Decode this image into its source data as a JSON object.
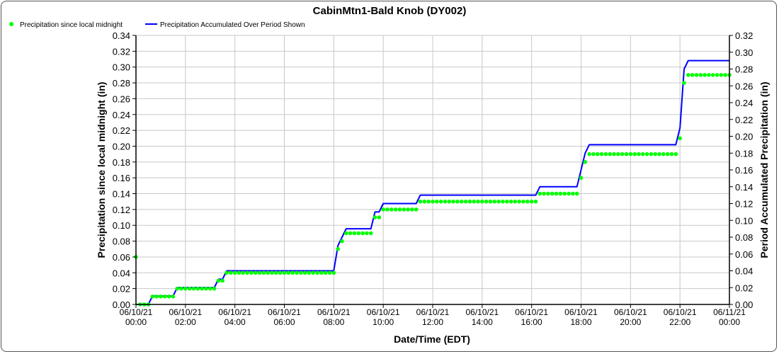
{
  "chart_data": {
    "type": "line",
    "title": "CabinMtn1-Bald Knob (DY002)",
    "xlabel": "Date/Time (EDT)",
    "ylabel_left": "Precipitation since local midnight (in)",
    "ylabel_right": "Period Accumulated Precipitation (in)",
    "ylim_left": [
      0,
      0.34
    ],
    "ylim_right": [
      0,
      0.32
    ],
    "grid": true,
    "legend": "top-left",
    "x_tick_labels": [
      [
        "06/10/21",
        "00:00"
      ],
      [
        "06/10/21",
        "02:00"
      ],
      [
        "06/10/21",
        "04:00"
      ],
      [
        "06/10/21",
        "06:00"
      ],
      [
        "06/10/21",
        "08:00"
      ],
      [
        "06/10/21",
        "10:00"
      ],
      [
        "06/10/21",
        "12:00"
      ],
      [
        "06/10/21",
        "14:00"
      ],
      [
        "06/10/21",
        "16:00"
      ],
      [
        "06/10/21",
        "18:00"
      ],
      [
        "06/10/21",
        "20:00"
      ],
      [
        "06/10/21",
        "22:00"
      ],
      [
        "06/11/21",
        "00:00"
      ]
    ],
    "y_left_ticks": [
      "0.00",
      "0.02",
      "0.04",
      "0.06",
      "0.08",
      "0.10",
      "0.12",
      "0.14",
      "0.16",
      "0.18",
      "0.20",
      "0.22",
      "0.24",
      "0.26",
      "0.28",
      "0.30",
      "0.32",
      "0.34"
    ],
    "y_right_ticks": [
      "0.00",
      "0.02",
      "0.04",
      "0.06",
      "0.08",
      "0.10",
      "0.12",
      "0.14",
      "0.16",
      "0.18",
      "0.20",
      "0.22",
      "0.24",
      "0.26",
      "0.28",
      "0.30",
      "0.32"
    ],
    "x": [
      "00:00",
      "00:10",
      "00:20",
      "00:30",
      "00:40",
      "00:50",
      "01:00",
      "01:10",
      "01:20",
      "01:30",
      "01:40",
      "01:50",
      "02:00",
      "02:10",
      "02:20",
      "02:30",
      "02:40",
      "02:50",
      "03:00",
      "03:10",
      "03:20",
      "03:30",
      "03:40",
      "03:50",
      "04:00",
      "04:10",
      "04:20",
      "04:30",
      "04:40",
      "04:50",
      "05:00",
      "05:10",
      "05:20",
      "05:30",
      "05:40",
      "05:50",
      "06:00",
      "06:10",
      "06:20",
      "06:30",
      "06:40",
      "06:50",
      "07:00",
      "07:10",
      "07:20",
      "07:30",
      "07:40",
      "07:50",
      "08:00",
      "08:10",
      "08:20",
      "08:30",
      "08:40",
      "08:50",
      "09:00",
      "09:10",
      "09:20",
      "09:30",
      "09:40",
      "09:50",
      "10:00",
      "10:10",
      "10:20",
      "10:30",
      "10:40",
      "10:50",
      "11:00",
      "11:10",
      "11:20",
      "11:30",
      "11:40",
      "11:50",
      "12:00",
      "12:10",
      "12:20",
      "12:30",
      "12:40",
      "12:50",
      "13:00",
      "13:10",
      "13:20",
      "13:30",
      "13:40",
      "13:50",
      "14:00",
      "14:10",
      "14:20",
      "14:30",
      "14:40",
      "14:50",
      "15:00",
      "15:10",
      "15:20",
      "15:30",
      "15:40",
      "15:50",
      "16:00",
      "16:10",
      "16:20",
      "16:30",
      "16:40",
      "16:50",
      "17:00",
      "17:10",
      "17:20",
      "17:30",
      "17:40",
      "17:50",
      "18:00",
      "18:10",
      "18:20",
      "18:30",
      "18:40",
      "18:50",
      "19:00",
      "19:10",
      "19:20",
      "19:30",
      "19:40",
      "19:50",
      "20:00",
      "20:10",
      "20:20",
      "20:30",
      "20:40",
      "20:50",
      "21:00",
      "21:10",
      "21:20",
      "21:30",
      "21:40",
      "21:50",
      "22:00",
      "22:10",
      "22:20",
      "22:30",
      "22:40",
      "22:50",
      "23:00",
      "23:10",
      "23:20",
      "23:30",
      "23:40",
      "23:50",
      "24:00"
    ],
    "series": [
      {
        "name": "Precipitation since local midnight",
        "axis": "left",
        "style": "dots",
        "color": "#00ff00",
        "values": [
          0.06,
          0,
          0,
          0,
          0.01,
          0.01,
          0.01,
          0.01,
          0.01,
          0.01,
          0.02,
          0.02,
          0.02,
          0.02,
          0.02,
          0.02,
          0.02,
          0.02,
          0.02,
          0.02,
          0.03,
          0.03,
          0.04,
          0.04,
          0.04,
          0.04,
          0.04,
          0.04,
          0.04,
          0.04,
          0.04,
          0.04,
          0.04,
          0.04,
          0.04,
          0.04,
          0.04,
          0.04,
          0.04,
          0.04,
          0.04,
          0.04,
          0.04,
          0.04,
          0.04,
          0.04,
          0.04,
          0.04,
          0.04,
          0.07,
          0.08,
          0.09,
          0.09,
          0.09,
          0.09,
          0.09,
          0.09,
          0.09,
          0.11,
          0.11,
          0.12,
          0.12,
          0.12,
          0.12,
          0.12,
          0.12,
          0.12,
          0.12,
          0.12,
          0.13,
          0.13,
          0.13,
          0.13,
          0.13,
          0.13,
          0.13,
          0.13,
          0.13,
          0.13,
          0.13,
          0.13,
          0.13,
          0.13,
          0.13,
          0.13,
          0.13,
          0.13,
          0.13,
          0.13,
          0.13,
          0.13,
          0.13,
          0.13,
          0.13,
          0.13,
          0.13,
          0.13,
          0.13,
          0.14,
          0.14,
          0.14,
          0.14,
          0.14,
          0.14,
          0.14,
          0.14,
          0.14,
          0.14,
          0.16,
          0.18,
          0.19,
          0.19,
          0.19,
          0.19,
          0.19,
          0.19,
          0.19,
          0.19,
          0.19,
          0.19,
          0.19,
          0.19,
          0.19,
          0.19,
          0.19,
          0.19,
          0.19,
          0.19,
          0.19,
          0.19,
          0.19,
          0.19,
          0.21,
          0.28,
          0.29,
          0.29,
          0.29,
          0.29,
          0.29,
          0.29,
          0.29,
          0.29,
          0.29,
          0.29,
          0.29
        ]
      },
      {
        "name": "Precipitation Accumulated Over Period Shown",
        "axis": "right",
        "style": "line",
        "color": "#0000ff",
        "values": [
          0,
          0,
          0,
          0,
          0.01,
          0.01,
          0.01,
          0.01,
          0.01,
          0.01,
          0.02,
          0.02,
          0.02,
          0.02,
          0.02,
          0.02,
          0.02,
          0.02,
          0.02,
          0.02,
          0.03,
          0.03,
          0.04,
          0.04,
          0.04,
          0.04,
          0.04,
          0.04,
          0.04,
          0.04,
          0.04,
          0.04,
          0.04,
          0.04,
          0.04,
          0.04,
          0.04,
          0.04,
          0.04,
          0.04,
          0.04,
          0.04,
          0.04,
          0.04,
          0.04,
          0.04,
          0.04,
          0.04,
          0.04,
          0.07,
          0.08,
          0.09,
          0.09,
          0.09,
          0.09,
          0.09,
          0.09,
          0.09,
          0.11,
          0.11,
          0.12,
          0.12,
          0.12,
          0.12,
          0.12,
          0.12,
          0.12,
          0.12,
          0.12,
          0.13,
          0.13,
          0.13,
          0.13,
          0.13,
          0.13,
          0.13,
          0.13,
          0.13,
          0.13,
          0.13,
          0.13,
          0.13,
          0.13,
          0.13,
          0.13,
          0.13,
          0.13,
          0.13,
          0.13,
          0.13,
          0.13,
          0.13,
          0.13,
          0.13,
          0.13,
          0.13,
          0.13,
          0.13,
          0.14,
          0.14,
          0.14,
          0.14,
          0.14,
          0.14,
          0.14,
          0.14,
          0.14,
          0.14,
          0.16,
          0.18,
          0.19,
          0.19,
          0.19,
          0.19,
          0.19,
          0.19,
          0.19,
          0.19,
          0.19,
          0.19,
          0.19,
          0.19,
          0.19,
          0.19,
          0.19,
          0.19,
          0.19,
          0.19,
          0.19,
          0.19,
          0.19,
          0.19,
          0.21,
          0.28,
          0.29,
          0.29,
          0.29,
          0.29,
          0.29,
          0.29,
          0.29,
          0.29,
          0.29,
          0.29,
          0.29
        ]
      }
    ]
  }
}
